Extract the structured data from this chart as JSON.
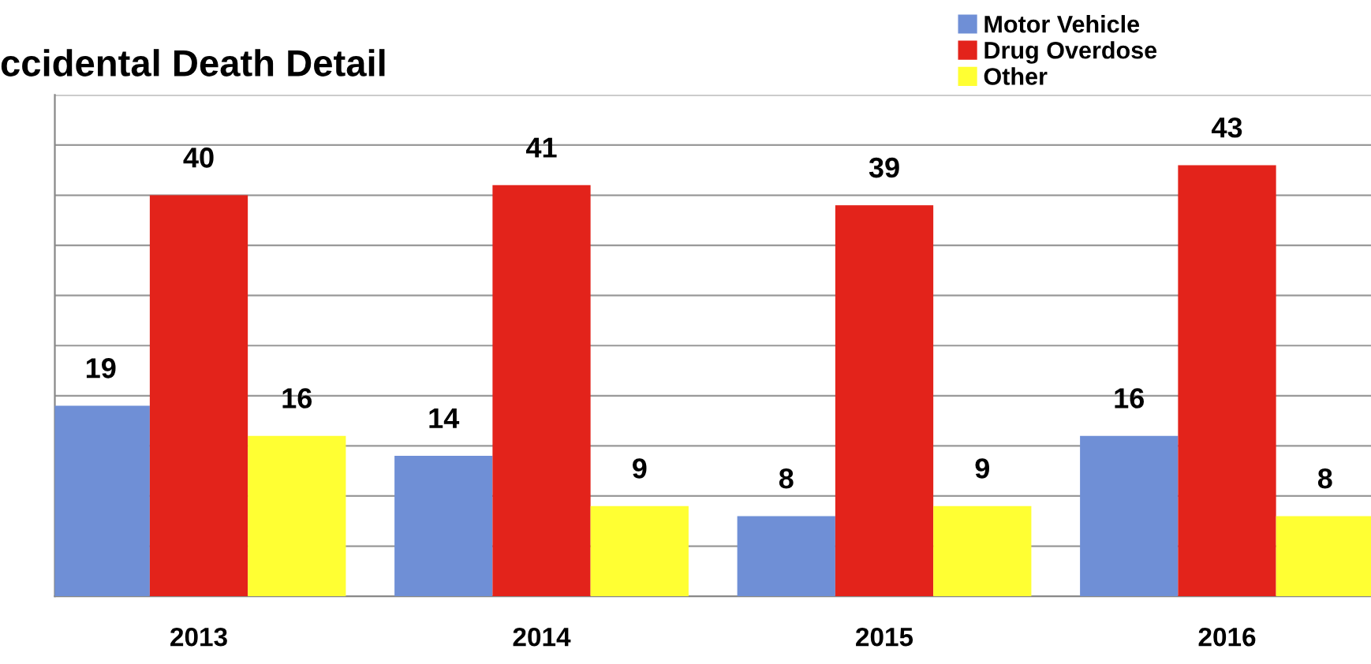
{
  "chart_data": {
    "type": "bar",
    "title": "ccidental Death Detail",
    "categories": [
      "2013",
      "2014",
      "2015",
      "2016"
    ],
    "series": [
      {
        "name": "Motor Vehicle",
        "color": "#6f8fd6",
        "values": [
          19,
          14,
          8,
          16
        ]
      },
      {
        "name": "Drug Overdose",
        "color": "#e3231b",
        "values": [
          40,
          41,
          39,
          43
        ]
      },
      {
        "name": "Other",
        "color": "#ffff33",
        "values": [
          16,
          9,
          9,
          8
        ]
      }
    ],
    "ylim": [
      0,
      50
    ],
    "yticks": [
      {
        "value": 0,
        "label": null
      },
      {
        "value": 5,
        "label": null
      },
      {
        "value": 10,
        "label": null
      },
      {
        "value": 15,
        "label": null
      },
      {
        "value": 20,
        "label": null
      },
      {
        "value": 25,
        "label": null
      },
      {
        "value": 30,
        "label": null
      },
      {
        "value": 35,
        "label": null
      },
      {
        "value": 40,
        "label": null
      },
      {
        "value": 45,
        "label": null
      },
      {
        "value": 50,
        "label": null
      }
    ],
    "grid": "y",
    "legend": "top right",
    "data_labels": true,
    "tick_labels": "x"
  }
}
